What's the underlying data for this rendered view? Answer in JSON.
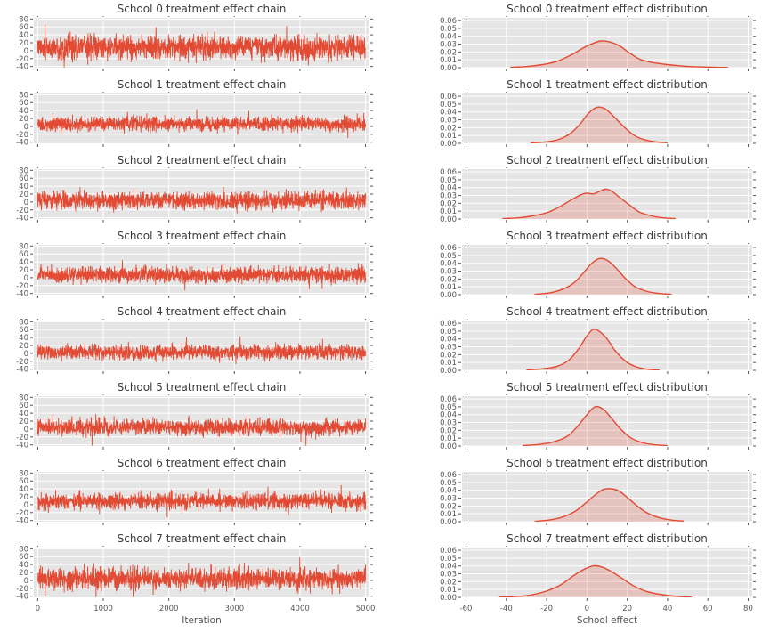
{
  "style": {
    "panel_bg": "#E5E5E5",
    "grid": "#FFFFFF",
    "line": "#E24A33",
    "area_fill": "rgba(226,74,51,0.22)",
    "text": "#555555",
    "tick": "#555555",
    "title": "#3a3a3a"
  },
  "chart_data": [
    {
      "type": "line",
      "title": "School 0 treatment effect chain",
      "xlabel": "",
      "xlim": [
        0,
        5000
      ],
      "ylim": [
        -40,
        80
      ],
      "xticks": [
        0,
        1000,
        2000,
        3000,
        4000,
        5000
      ],
      "yticks": [
        -40,
        -20,
        0,
        20,
        40,
        60,
        80
      ],
      "show_x_tick_labels": false,
      "trace": {
        "mean": 8,
        "sd": 15,
        "iterations": 5000
      }
    },
    {
      "type": "area",
      "title": "School 0 treatment effect distribution",
      "xlabel": "",
      "xlim": [
        -60,
        80
      ],
      "ylim": [
        0,
        0.06
      ],
      "xticks": [
        -60,
        -40,
        -20,
        0,
        20,
        40,
        60,
        80
      ],
      "yticks": [
        0,
        0.01,
        0.02,
        0.03,
        0.04,
        0.05,
        0.06
      ],
      "show_x_tick_labels": false,
      "points": [
        [
          -38,
          0.0005
        ],
        [
          -30,
          0.0015
        ],
        [
          -22,
          0.004
        ],
        [
          -15,
          0.008
        ],
        [
          -8,
          0.016
        ],
        [
          -2,
          0.025
        ],
        [
          3,
          0.031
        ],
        [
          7,
          0.034
        ],
        [
          11,
          0.033
        ],
        [
          16,
          0.028
        ],
        [
          21,
          0.019
        ],
        [
          26,
          0.011
        ],
        [
          30,
          0.008
        ],
        [
          34,
          0.006
        ],
        [
          40,
          0.004
        ],
        [
          48,
          0.002
        ],
        [
          56,
          0.001
        ],
        [
          64,
          0.0005
        ],
        [
          70,
          0.0002
        ]
      ]
    },
    {
      "type": "line",
      "title": "School 1 treatment effect chain",
      "xlabel": "",
      "xlim": [
        0,
        5000
      ],
      "ylim": [
        -40,
        80
      ],
      "xticks": [
        0,
        1000,
        2000,
        3000,
        4000,
        5000
      ],
      "yticks": [
        -40,
        -20,
        0,
        20,
        40,
        60,
        80
      ],
      "show_x_tick_labels": false,
      "trace": {
        "mean": 6,
        "sd": 9,
        "iterations": 5000
      }
    },
    {
      "type": "area",
      "title": "School 1 treatment effect distribution",
      "xlabel": "",
      "xlim": [
        -60,
        80
      ],
      "ylim": [
        0,
        0.06
      ],
      "xticks": [
        -60,
        -40,
        -20,
        0,
        20,
        40,
        60,
        80
      ],
      "yticks": [
        0,
        0.01,
        0.02,
        0.03,
        0.04,
        0.05,
        0.06
      ],
      "show_x_tick_labels": false,
      "points": [
        [
          -28,
          0.0005
        ],
        [
          -20,
          0.002
        ],
        [
          -14,
          0.005
        ],
        [
          -8,
          0.013
        ],
        [
          -3,
          0.026
        ],
        [
          1,
          0.039
        ],
        [
          5,
          0.046
        ],
        [
          9,
          0.044
        ],
        [
          13,
          0.035
        ],
        [
          18,
          0.022
        ],
        [
          23,
          0.011
        ],
        [
          28,
          0.005
        ],
        [
          34,
          0.002
        ],
        [
          40,
          0.0008
        ]
      ]
    },
    {
      "type": "line",
      "title": "School 2 treatment effect chain",
      "xlabel": "",
      "xlim": [
        0,
        5000
      ],
      "ylim": [
        -40,
        80
      ],
      "xticks": [
        0,
        1000,
        2000,
        3000,
        4000,
        5000
      ],
      "yticks": [
        -40,
        -20,
        0,
        20,
        40,
        60,
        80
      ],
      "show_x_tick_labels": false,
      "trace": {
        "mean": 4,
        "sd": 11,
        "iterations": 5000
      }
    },
    {
      "type": "area",
      "title": "School 2 treatment effect distribution",
      "xlabel": "",
      "xlim": [
        -60,
        80
      ],
      "ylim": [
        0,
        0.06
      ],
      "xticks": [
        -60,
        -40,
        -20,
        0,
        20,
        40,
        60,
        80
      ],
      "yticks": [
        0,
        0.01,
        0.02,
        0.03,
        0.04,
        0.05,
        0.06
      ],
      "show_x_tick_labels": false,
      "points": [
        [
          -42,
          0.0005
        ],
        [
          -34,
          0.0015
        ],
        [
          -27,
          0.004
        ],
        [
          -20,
          0.008
        ],
        [
          -14,
          0.015
        ],
        [
          -8,
          0.024
        ],
        [
          -3,
          0.031
        ],
        [
          0,
          0.033
        ],
        [
          3,
          0.032
        ],
        [
          6,
          0.035
        ],
        [
          9,
          0.038
        ],
        [
          12,
          0.036
        ],
        [
          16,
          0.028
        ],
        [
          21,
          0.018
        ],
        [
          26,
          0.009
        ],
        [
          32,
          0.004
        ],
        [
          38,
          0.0015
        ],
        [
          44,
          0.0005
        ]
      ]
    },
    {
      "type": "line",
      "title": "School 3 treatment effect chain",
      "xlabel": "",
      "xlim": [
        0,
        5000
      ],
      "ylim": [
        -40,
        80
      ],
      "xticks": [
        0,
        1000,
        2000,
        3000,
        4000,
        5000
      ],
      "yticks": [
        -40,
        -20,
        0,
        20,
        40,
        60,
        80
      ],
      "show_x_tick_labels": false,
      "trace": {
        "mean": 7,
        "sd": 10,
        "iterations": 5000
      }
    },
    {
      "type": "area",
      "title": "School 3 treatment effect distribution",
      "xlabel": "",
      "xlim": [
        -60,
        80
      ],
      "ylim": [
        0,
        0.06
      ],
      "xticks": [
        -60,
        -40,
        -20,
        0,
        20,
        40,
        60,
        80
      ],
      "yticks": [
        0,
        0.01,
        0.02,
        0.03,
        0.04,
        0.05,
        0.06
      ],
      "show_x_tick_labels": false,
      "points": [
        [
          -26,
          0.0005
        ],
        [
          -19,
          0.002
        ],
        [
          -13,
          0.006
        ],
        [
          -7,
          0.014
        ],
        [
          -2,
          0.027
        ],
        [
          2,
          0.039
        ],
        [
          6,
          0.046
        ],
        [
          10,
          0.044
        ],
        [
          14,
          0.035
        ],
        [
          19,
          0.021
        ],
        [
          24,
          0.01
        ],
        [
          30,
          0.004
        ],
        [
          36,
          0.0015
        ],
        [
          42,
          0.0005
        ]
      ]
    },
    {
      "type": "line",
      "title": "School 4 treatment effect chain",
      "xlabel": "",
      "xlim": [
        0,
        5000
      ],
      "ylim": [
        -40,
        80
      ],
      "xticks": [
        0,
        1000,
        2000,
        3000,
        4000,
        5000
      ],
      "yticks": [
        -40,
        -20,
        0,
        20,
        40,
        60,
        80
      ],
      "show_x_tick_labels": false,
      "trace": {
        "mean": 3,
        "sd": 9,
        "iterations": 5000
      }
    },
    {
      "type": "area",
      "title": "School 4 treatment effect distribution",
      "xlabel": "",
      "xlim": [
        -60,
        80
      ],
      "ylim": [
        0,
        0.06
      ],
      "xticks": [
        -60,
        -40,
        -20,
        0,
        20,
        40,
        60,
        80
      ],
      "yticks": [
        0,
        0.01,
        0.02,
        0.03,
        0.04,
        0.05,
        0.06
      ],
      "show_x_tick_labels": false,
      "points": [
        [
          -30,
          0.0005
        ],
        [
          -22,
          0.002
        ],
        [
          -15,
          0.005
        ],
        [
          -9,
          0.013
        ],
        [
          -4,
          0.028
        ],
        [
          0,
          0.044
        ],
        [
          3,
          0.052
        ],
        [
          6,
          0.05
        ],
        [
          10,
          0.04
        ],
        [
          14,
          0.025
        ],
        [
          19,
          0.012
        ],
        [
          24,
          0.005
        ],
        [
          30,
          0.0015
        ],
        [
          36,
          0.0005
        ]
      ]
    },
    {
      "type": "line",
      "title": "School 5 treatment effect chain",
      "xlabel": "",
      "xlim": [
        0,
        5000
      ],
      "ylim": [
        -40,
        80
      ],
      "xticks": [
        0,
        1000,
        2000,
        3000,
        4000,
        5000
      ],
      "yticks": [
        -40,
        -20,
        0,
        20,
        40,
        60,
        80
      ],
      "show_x_tick_labels": false,
      "trace": {
        "mean": 4,
        "sd": 10,
        "iterations": 5000
      }
    },
    {
      "type": "area",
      "title": "School 5 treatment effect distribution",
      "xlabel": "",
      "xlim": [
        -60,
        80
      ],
      "ylim": [
        0,
        0.06
      ],
      "xticks": [
        -60,
        -40,
        -20,
        0,
        20,
        40,
        60,
        80
      ],
      "yticks": [
        0,
        0.01,
        0.02,
        0.03,
        0.04,
        0.05,
        0.06
      ],
      "show_x_tick_labels": false,
      "points": [
        [
          -32,
          0.0005
        ],
        [
          -24,
          0.002
        ],
        [
          -17,
          0.005
        ],
        [
          -10,
          0.012
        ],
        [
          -5,
          0.024
        ],
        [
          0,
          0.04
        ],
        [
          4,
          0.05
        ],
        [
          8,
          0.047
        ],
        [
          12,
          0.036
        ],
        [
          17,
          0.021
        ],
        [
          22,
          0.01
        ],
        [
          28,
          0.004
        ],
        [
          34,
          0.0015
        ],
        [
          40,
          0.0005
        ]
      ]
    },
    {
      "type": "line",
      "title": "School 6 treatment effect chain",
      "xlabel": "",
      "xlim": [
        0,
        5000
      ],
      "ylim": [
        -40,
        80
      ],
      "xticks": [
        0,
        1000,
        2000,
        3000,
        4000,
        5000
      ],
      "yticks": [
        -40,
        -20,
        0,
        20,
        40,
        60,
        80
      ],
      "show_x_tick_labels": false,
      "trace": {
        "mean": 9,
        "sd": 10,
        "iterations": 5000
      }
    },
    {
      "type": "area",
      "title": "School 6 treatment effect distribution",
      "xlabel": "",
      "xlim": [
        -60,
        80
      ],
      "ylim": [
        0,
        0.06
      ],
      "xticks": [
        -60,
        -40,
        -20,
        0,
        20,
        40,
        60,
        80
      ],
      "yticks": [
        0,
        0.01,
        0.02,
        0.03,
        0.04,
        0.05,
        0.06
      ],
      "show_x_tick_labels": false,
      "points": [
        [
          -26,
          0.0005
        ],
        [
          -19,
          0.002
        ],
        [
          -12,
          0.006
        ],
        [
          -6,
          0.013
        ],
        [
          -1,
          0.023
        ],
        [
          4,
          0.034
        ],
        [
          8,
          0.041
        ],
        [
          12,
          0.042
        ],
        [
          16,
          0.039
        ],
        [
          20,
          0.031
        ],
        [
          25,
          0.02
        ],
        [
          30,
          0.011
        ],
        [
          36,
          0.005
        ],
        [
          42,
          0.002
        ],
        [
          48,
          0.0008
        ]
      ]
    },
    {
      "type": "line",
      "title": "School 7 treatment effect chain",
      "xlabel": "Iteration",
      "xlim": [
        0,
        5000
      ],
      "ylim": [
        -40,
        80
      ],
      "xticks": [
        0,
        1000,
        2000,
        3000,
        4000,
        5000
      ],
      "yticks": [
        -40,
        -20,
        0,
        20,
        40,
        60,
        80
      ],
      "show_x_tick_labels": true,
      "trace": {
        "mean": 4,
        "sd": 13,
        "iterations": 5000
      }
    },
    {
      "type": "area",
      "title": "School 7 treatment effect distribution",
      "xlabel": "School effect",
      "xlim": [
        -60,
        80
      ],
      "ylim": [
        0,
        0.06
      ],
      "xticks": [
        -60,
        -40,
        -20,
        0,
        20,
        40,
        60,
        80
      ],
      "yticks": [
        0,
        0.01,
        0.02,
        0.03,
        0.04,
        0.05,
        0.06
      ],
      "show_x_tick_labels": true,
      "points": [
        [
          -44,
          0.0003
        ],
        [
          -36,
          0.001
        ],
        [
          -28,
          0.003
        ],
        [
          -20,
          0.008
        ],
        [
          -13,
          0.016
        ],
        [
          -7,
          0.027
        ],
        [
          -2,
          0.035
        ],
        [
          3,
          0.04
        ],
        [
          7,
          0.039
        ],
        [
          12,
          0.033
        ],
        [
          17,
          0.025
        ],
        [
          23,
          0.015
        ],
        [
          29,
          0.008
        ],
        [
          36,
          0.004
        ],
        [
          44,
          0.0015
        ],
        [
          52,
          0.0005
        ]
      ]
    }
  ]
}
